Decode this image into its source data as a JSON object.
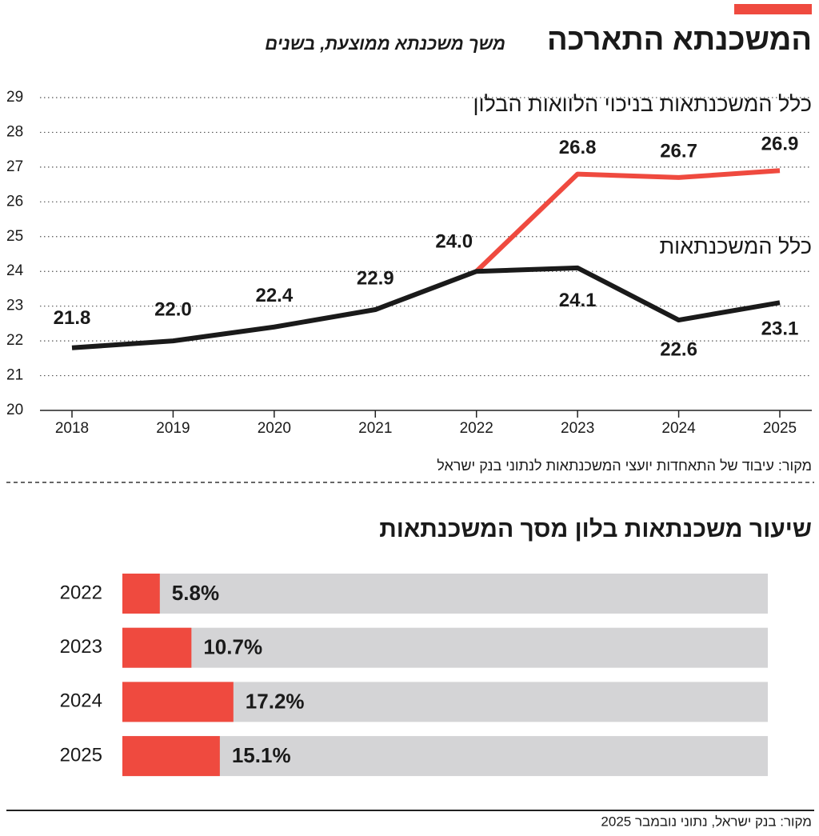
{
  "chart_data": [
    {
      "type": "line",
      "title": "המשכנתא התארכה",
      "subtitle": "משך משכנתא ממוצעת, בשנים",
      "categories": [
        "2018",
        "2019",
        "2020",
        "2021",
        "2022",
        "2023",
        "2024",
        "2025"
      ],
      "series": [
        {
          "name": "כלל המשכנתאות",
          "color": "#1a1a1a",
          "values": [
            21.8,
            22.0,
            22.4,
            22.9,
            24.0,
            24.1,
            22.6,
            23.1
          ],
          "value_labels": [
            "21.8",
            "22.0",
            "22.4",
            "22.9",
            "24.0",
            "24.1",
            "22.6",
            "23.1"
          ]
        },
        {
          "name": "כלל המשכנתאות בניכוי הלוואות הבלון",
          "color": "#ef4a3f",
          "values": [
            null,
            null,
            null,
            null,
            24.0,
            26.8,
            26.7,
            26.9
          ],
          "value_labels": [
            null,
            null,
            null,
            null,
            null,
            "26.8",
            "26.7",
            "26.9"
          ]
        }
      ],
      "ylim": [
        20,
        29
      ],
      "yticks": [
        20,
        21,
        22,
        23,
        24,
        25,
        26,
        27,
        28,
        29
      ],
      "grid": true,
      "source": "מקור: עיבוד של התאחדות יועצי המשכנתאות לנתוני בנק ישראל"
    },
    {
      "type": "hbar",
      "title": "שיעור משכנתאות בלון מסך המשכנתאות",
      "categories": [
        "2022",
        "2023",
        "2024",
        "2025"
      ],
      "values": [
        5.8,
        10.7,
        17.2,
        15.1
      ],
      "value_labels": [
        "5.8%",
        "10.7%",
        "17.2%",
        "15.1%"
      ],
      "color": "#ef4a3f",
      "track_color": "#d4d4d6",
      "xlim": [
        0,
        100
      ],
      "source": "מקור: בנק ישראל, נתוני נובמבר 2025"
    }
  ]
}
